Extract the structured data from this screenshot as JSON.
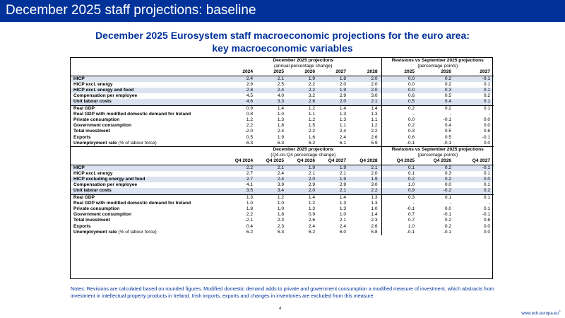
{
  "slide_title": "December 2025 staff projections: baseline",
  "heading": {
    "line1": "December 2025 Eurosystem staff macroeconomic projections for the euro area:",
    "line2": "key macroeconomic variables"
  },
  "annual": {
    "proj_header": "December 2025 projections",
    "proj_subheader": "(annual percentage change)",
    "rev_header": "Revisions vs September 2025 projections",
    "rev_subheader": "(percentage points)",
    "proj_years": [
      "2024",
      "2025",
      "2026",
      "2027",
      "2028"
    ],
    "rev_years": [
      "2025",
      "2026",
      "2027"
    ],
    "rows": [
      {
        "label": "HICP",
        "proj": [
          "2.4",
          "2.1",
          "1.9",
          "1.8",
          "2.0"
        ],
        "rev": [
          "0.0",
          "0.2",
          "-0.1"
        ]
      },
      {
        "label": "HICP excl. energy",
        "proj": [
          "2.9",
          "2.5",
          "2.2",
          "2.0",
          "2.0"
        ],
        "rev": [
          "0.0",
          "0.2",
          "0.1"
        ]
      },
      {
        "label": "HICP excl. energy and food",
        "proj": [
          "2.8",
          "2.4",
          "2.2",
          "1.9",
          "2.0"
        ],
        "rev": [
          "0.0",
          "0.3",
          "0.1"
        ]
      },
      {
        "label": "Compensation per employee",
        "proj": [
          "4.5",
          "4.0",
          "3.2",
          "2.9",
          "3.0"
        ],
        "rev": [
          "0.6",
          "0.5",
          "0.2"
        ]
      },
      {
        "label": "Unit labour costs",
        "proj": [
          "4.6",
          "3.3",
          "2.6",
          "2.0",
          "2.1"
        ],
        "rev": [
          "0.5",
          "0.4",
          "0.1"
        ]
      },
      {
        "label": "Real GDP",
        "proj": [
          "0.9",
          "1.4",
          "1.2",
          "1.4",
          "1.4"
        ],
        "rev": [
          "0.2",
          "0.2",
          "0.1"
        ]
      },
      {
        "label": "Real GDP with modified domestic demand for Ireland",
        "proj": [
          "0.8",
          "1.0",
          "1.1",
          "1.3",
          "1.3"
        ],
        "rev": [
          "-",
          "-",
          "-"
        ]
      },
      {
        "label": "Private consumption",
        "proj": [
          "1.2",
          "1.3",
          "1.2",
          "1.3",
          "1.1"
        ],
        "rev": [
          "0.0",
          "-0.1",
          "0.0"
        ]
      },
      {
        "label": "Government consumption",
        "proj": [
          "2.2",
          "1.8",
          "1.5",
          "1.1",
          "1.2"
        ],
        "rev": [
          "0.2",
          "0.4",
          "0.0"
        ]
      },
      {
        "label": "Total investment",
        "proj": [
          "-2.0",
          "2.4",
          "2.2",
          "2.4",
          "2.2"
        ],
        "rev": [
          "0.3",
          "0.5",
          "0.6"
        ]
      },
      {
        "label": "Exports",
        "proj": [
          "0.5",
          "1.9",
          "1.6",
          "2.4",
          "2.6"
        ],
        "rev": [
          "0.6",
          "0.5",
          "-0.1"
        ]
      },
      {
        "label": "Unemployment rate",
        "unit": "(% of labour force)",
        "proj": [
          "6.3",
          "6.3",
          "6.2",
          "6.1",
          "5.9"
        ],
        "rev": [
          "-0.1",
          "-0.1",
          "0.0"
        ]
      }
    ]
  },
  "q4": {
    "proj_header": "December 2025 projections",
    "proj_subheader": "(Q4-on-Q4 percentage change)",
    "rev_header": "Revisions vs September 2025 projections",
    "rev_subheader": "(percentage points)",
    "proj_years": [
      "Q4 2024",
      "Q4 2025",
      "Q4 2026",
      "Q4 2027",
      "Q4 2028"
    ],
    "rev_years": [
      "Q4 2025",
      "Q4 2026",
      "Q4 2027"
    ],
    "rows": [
      {
        "label": "HICP",
        "proj": [
          "2.2",
          "2.1",
          "1.9",
          "1.9",
          "2.1"
        ],
        "rev": [
          "0.1",
          "0.2",
          "-0.1"
        ]
      },
      {
        "label": "HICP excl. energy",
        "proj": [
          "2.7",
          "2.4",
          "2.1",
          "2.1",
          "2.0"
        ],
        "rev": [
          "0.1",
          "0.3",
          "0.1"
        ]
      },
      {
        "label": "HICP excluding energy and food",
        "proj": [
          "2.7",
          "2.4",
          "2.0",
          "1.9",
          "1.9"
        ],
        "rev": [
          "0.2",
          "0.2",
          "0.0"
        ]
      },
      {
        "label": "Compensation per employee",
        "proj": [
          "4.1",
          "3.9",
          "2.9",
          "2.9",
          "3.0"
        ],
        "rev": [
          "1.0",
          "0.0",
          "0.1"
        ]
      },
      {
        "label": "Unit labour costs",
        "proj": [
          "3.5",
          "3.4",
          "2.0",
          "2.1",
          "2.2"
        ],
        "rev": [
          "0.9",
          "-0.2",
          "0.2"
        ]
      },
      {
        "label": "Real GDP",
        "proj": [
          "1.3",
          "1.2",
          "1.4",
          "1.4",
          "1.3"
        ],
        "rev": [
          "0.3",
          "0.1",
          "0.1"
        ]
      },
      {
        "label": "Real GDP with modified domestic demand for Ireland",
        "proj": [
          "1.0",
          "1.0",
          "1.2",
          "1.3",
          "1.3"
        ],
        "rev": [
          "-",
          "-",
          "-"
        ]
      },
      {
        "label": "Private consumption",
        "proj": [
          "1.8",
          "1.0",
          "1.3",
          "1.3",
          "1.0"
        ],
        "rev": [
          "-0.1",
          "0.0",
          "0.1"
        ]
      },
      {
        "label": "Government consumption",
        "proj": [
          "2.2",
          "1.8",
          "0.9",
          "1.0",
          "1.4"
        ],
        "rev": [
          "0.7",
          "-0.1",
          "-0.1"
        ]
      },
      {
        "label": "Total investment",
        "proj": [
          "-2.1",
          "2.3",
          "2.6",
          "2.1",
          "2.3"
        ],
        "rev": [
          "0.7",
          "0.2",
          "0.6"
        ]
      },
      {
        "label": "Exports",
        "proj": [
          "0.4",
          "2.3",
          "2.4",
          "2.4",
          "2.6"
        ],
        "rev": [
          "1.0",
          "0.2",
          "0.0"
        ]
      },
      {
        "label": "Unemployment rate",
        "unit": "(% of labour force)",
        "proj": [
          "6.2",
          "6.3",
          "6.2",
          "6.0",
          "5.8"
        ],
        "rev": [
          "-0.1",
          "-0.1",
          "0.0"
        ]
      }
    ]
  },
  "notes": "Notes: Revisions are calculated based on rounded figures. Modified domestic demand adds to private and government consumption a modified measure of investment, which abstracts from investment in intellectual property products in Ireland. Irish imports, exports and changes in inventories are excluded from this measure.",
  "page_number": "4",
  "website": "www.ecb.europa.eu",
  "website_mark": "©",
  "colors": {
    "brand_blue": "#003299",
    "row_shade": "#dbe3f0"
  }
}
